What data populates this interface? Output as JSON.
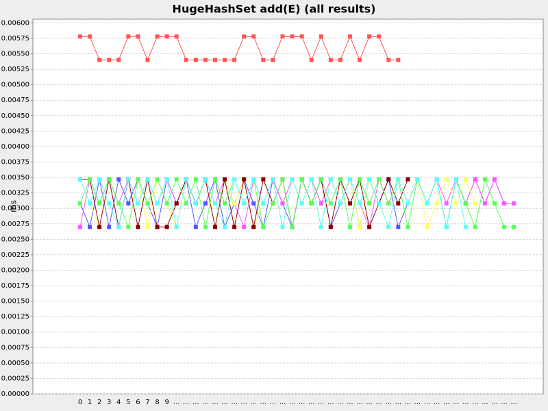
{
  "chart_data": {
    "type": "line",
    "title": "HugeHashSet add(E) (all results)",
    "y_label": "ms",
    "grid": true,
    "categories": [
      "0",
      "1",
      "2",
      "3",
      "4",
      "5",
      "6",
      "7",
      "8",
      "9",
      "...",
      "...",
      "...",
      "...",
      "...",
      "...",
      "...",
      "...",
      "...",
      "...",
      "...",
      "...",
      "...",
      "...",
      "...",
      "...",
      "...",
      "...",
      "...",
      "...",
      "...",
      "...",
      "...",
      "...",
      "...",
      "...",
      "...",
      "...",
      "...",
      "...",
      "...",
      "...",
      "...",
      "...",
      "...",
      "..."
    ],
    "ylim": [
      0,
      0.00606
    ],
    "yticks": [
      {
        "value": 0,
        "label": "0.00000"
      },
      {
        "value": 0.00025,
        "label": "0.00025"
      },
      {
        "value": 0.0005,
        "label": "0.00050"
      },
      {
        "value": 0.00075,
        "label": "0.00075"
      },
      {
        "value": 0.001,
        "label": "0.00100"
      },
      {
        "value": 0.00125,
        "label": "0.00125"
      },
      {
        "value": 0.0015,
        "label": "0.00150"
      },
      {
        "value": 0.00175,
        "label": "0.00175"
      },
      {
        "value": 0.002,
        "label": "0.00200"
      },
      {
        "value": 0.00225,
        "label": "0.00225"
      },
      {
        "value": 0.0025,
        "label": "0.00250"
      },
      {
        "value": 0.00275,
        "label": "0.00275"
      },
      {
        "value": 0.003,
        "label": "0.00300"
      },
      {
        "value": 0.00325,
        "label": "0.00325"
      },
      {
        "value": 0.0035,
        "label": "0.00350"
      },
      {
        "value": 0.00375,
        "label": "0.00375"
      },
      {
        "value": 0.004,
        "label": "0.00400"
      },
      {
        "value": 0.00425,
        "label": "0.00425"
      },
      {
        "value": 0.0045,
        "label": "0.00450"
      },
      {
        "value": 0.00475,
        "label": "0.00475"
      },
      {
        "value": 0.005,
        "label": "0.00500"
      },
      {
        "value": 0.00525,
        "label": "0.00525"
      },
      {
        "value": 0.0055,
        "label": "0.00550"
      },
      {
        "value": 0.00575,
        "label": "0.00575"
      },
      {
        "value": 0.006,
        "label": "0.00600"
      }
    ],
    "series": [
      {
        "color": "#ff5555",
        "values": [
          0.00578,
          0.00578,
          0.0054,
          0.0054,
          0.0054,
          0.00578,
          0.00578,
          0.0054,
          0.00578,
          0.00578,
          0.00578,
          0.0054,
          0.0054,
          0.0054,
          0.0054,
          0.0054,
          0.0054,
          0.00578,
          0.00578,
          0.0054,
          0.0054,
          0.00578,
          0.00578,
          0.00578,
          0.0054,
          0.00578,
          0.0054,
          0.0054,
          0.00578,
          0.0054,
          0.00578,
          0.00578,
          0.0054,
          0.0054,
          null,
          null,
          null,
          null,
          null,
          null,
          null,
          null,
          null,
          null,
          null,
          null
        ]
      },
      {
        "color": "#5555ff",
        "values": [
          0.00308,
          0.0027,
          0.00347,
          0.0027,
          0.00347,
          0.00308,
          0.00347,
          0.00308,
          0.0027,
          0.00347,
          0.00308,
          0.00347,
          0.0027,
          0.00308,
          0.00347,
          0.0027,
          0.00308,
          0.00347,
          0.00308,
          0.0027,
          0.00347,
          0.00308,
          0.0027,
          0.00347,
          0.00308,
          0.00347,
          0.0027,
          0.00308,
          0.00347,
          0.0027,
          0.00347,
          0.00308,
          0.00347,
          0.0027,
          0.00308,
          0.00347,
          0.00308,
          0.00347,
          0.0027,
          0.00347,
          0.00308,
          0.00347,
          0.00308,
          0.00347,
          0.00308,
          0.00308
        ]
      },
      {
        "color": "#ff55ff",
        "values": [
          0.0027,
          0.00347,
          0.00308,
          0.00347,
          0.00308,
          0.00347,
          0.00308,
          0.00347,
          0.00308,
          0.00347,
          0.00308,
          0.00347,
          0.00308,
          0.00347,
          0.00308,
          0.00347,
          0.00308,
          0.0027,
          0.00347,
          0.00308,
          0.00347,
          0.00308,
          0.00347,
          0.00308,
          0.00347,
          0.00308,
          0.00347,
          0.00308,
          0.00347,
          0.00308,
          0.0027,
          0.00347,
          0.00308,
          0.00347,
          0.00308,
          0.00347,
          0.00308,
          0.00347,
          0.00308,
          0.00347,
          0.00308,
          0.00347,
          0.00308,
          0.00347,
          0.00308,
          0.00308
        ]
      },
      {
        "color": "#ffff55",
        "values": [
          0.00347,
          0.00308,
          0.0027,
          0.00347,
          0.00308,
          0.0027,
          0.00347,
          0.0027,
          0.00347,
          0.00308,
          0.0027,
          0.00347,
          0.00308,
          0.00347,
          0.0027,
          0.00347,
          0.00308,
          0.00347,
          0.0027,
          0.00308,
          0.00347,
          0.0027,
          0.00347,
          0.00308,
          0.00347,
          0.0027,
          0.00347,
          0.00308,
          0.00347,
          0.0027,
          0.00347,
          0.00308,
          0.0027,
          0.00347,
          0.00308,
          0.00347,
          0.0027,
          0.00308,
          0.00347,
          0.00308,
          0.00347,
          0.00308,
          null,
          null,
          null,
          null
        ]
      },
      {
        "color": "#880000",
        "values": [
          0.00347,
          0.00347,
          0.0027,
          0.00347,
          0.0027,
          0.00347,
          0.0027,
          0.00347,
          0.0027,
          0.0027,
          0.00308,
          0.00347,
          0.00308,
          0.00347,
          0.0027,
          0.00347,
          0.0027,
          0.00347,
          0.0027,
          0.00347,
          0.00308,
          0.00347,
          0.0027,
          0.00347,
          0.00308,
          0.00347,
          0.0027,
          0.00347,
          0.00308,
          0.00347,
          0.0027,
          0.00308,
          0.00347,
          0.00308,
          0.00347,
          null,
          null,
          null,
          null,
          null,
          null,
          null,
          null,
          null,
          null,
          null
        ]
      },
      {
        "color": "#55ff55",
        "values": [
          0.00308,
          0.00347,
          0.00308,
          0.00347,
          0.00308,
          0.0027,
          0.00347,
          0.00308,
          0.00347,
          0.00308,
          0.00347,
          0.00308,
          0.00347,
          0.0027,
          0.00347,
          0.00308,
          0.00347,
          0.00308,
          0.00347,
          0.0027,
          0.00308,
          0.00347,
          0.0027,
          0.00347,
          0.00308,
          0.00347,
          0.00308,
          0.00347,
          0.0027,
          0.00347,
          0.00308,
          0.00347,
          0.00308,
          0.00347,
          0.0027,
          0.00347,
          0.00308,
          0.00347,
          0.0027,
          0.00347,
          0.00308,
          0.0027,
          0.00347,
          0.00308,
          0.0027,
          0.0027
        ]
      },
      {
        "color": "#55ffff",
        "values": [
          0.00347,
          0.00308,
          0.00347,
          0.00308,
          0.0027,
          0.00347,
          0.00308,
          0.00347,
          0.00308,
          0.00347,
          0.0027,
          0.00347,
          0.00308,
          0.00347,
          0.00308,
          0.0027,
          0.00347,
          0.00308,
          0.00347,
          0.00308,
          0.00347,
          0.0027,
          0.00347,
          0.00308,
          0.00347,
          0.0027,
          0.00347,
          0.00308,
          0.00347,
          0.00308,
          0.00347,
          0.00308,
          0.0027,
          0.00347,
          0.00308,
          0.00347,
          0.00308,
          0.00347,
          0.0027,
          0.00347,
          0.0027,
          null,
          null,
          null,
          null,
          null
        ]
      }
    ]
  }
}
